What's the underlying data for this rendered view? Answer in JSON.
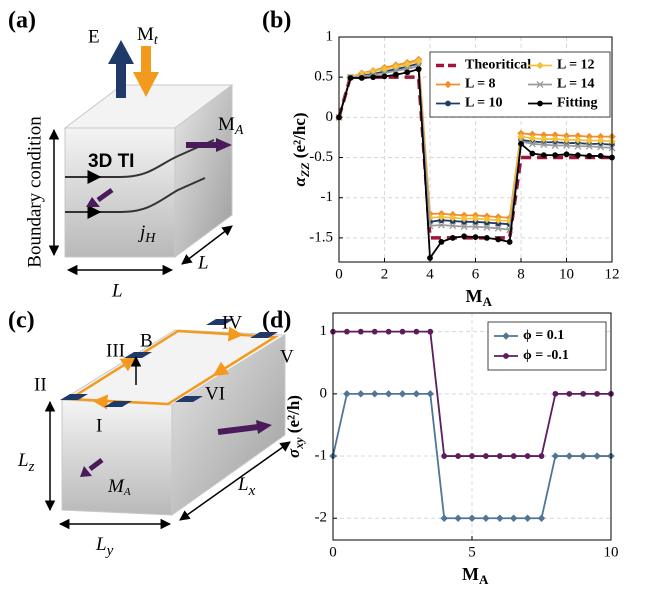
{
  "panel_labels": [
    "(a)",
    "(b)",
    "(c)",
    "(d)"
  ],
  "diagram_a": {
    "field": "E",
    "torque": {
      "symbol": "M",
      "subscript": "t"
    },
    "magnetization": {
      "symbol": "M",
      "subscript": "A"
    },
    "material": "3D TI",
    "current": {
      "symbol": "j",
      "subscript": "H"
    },
    "side_label": "Boundary condition",
    "width": "L",
    "depth": "L"
  },
  "diagram_c": {
    "field": "B",
    "leads": [
      "I",
      "II",
      "III",
      "IV",
      "V",
      "VI"
    ],
    "height": {
      "symbol": "L",
      "subscript": "z"
    },
    "width": {
      "symbol": "L",
      "subscript": "y"
    },
    "length": {
      "symbol": "L",
      "subscript": "x"
    },
    "magnetization": {
      "symbol": "M",
      "subscript": "A"
    }
  },
  "chart_data": [
    {
      "type": "line",
      "x": [
        0,
        0.5,
        1,
        1.5,
        2,
        2.5,
        3,
        3.5,
        4,
        4.5,
        5,
        5.5,
        6,
        6.5,
        7,
        7.5,
        8,
        8.5,
        9,
        9.5,
        10,
        10.5,
        11,
        11.5,
        12
      ],
      "series": [
        {
          "name": "Theoritical",
          "color": "#a0163a",
          "dash": true,
          "marker": "none",
          "values": [
            0,
            0.5,
            0.5,
            0.5,
            0.5,
            0.5,
            0.5,
            0.5,
            -1.5,
            -1.5,
            -1.5,
            -1.5,
            -1.5,
            -1.5,
            -1.5,
            -1.5,
            -0.5,
            -0.5,
            -0.5,
            -0.5,
            -0.5,
            -0.5,
            -0.5,
            -0.5,
            -0.5
          ]
        },
        {
          "name": "L = 8",
          "color": "#f28e2b",
          "marker": "diamond",
          "values": [
            0,
            0.5,
            0.55,
            0.58,
            0.62,
            0.65,
            0.68,
            0.72,
            -1.2,
            -1.2,
            -1.21,
            -1.22,
            -1.22,
            -1.23,
            -1.24,
            -1.25,
            -0.2,
            -0.21,
            -0.22,
            -0.22,
            -0.23,
            -0.23,
            -0.24,
            -0.24,
            -0.24
          ]
        },
        {
          "name": "L = 10",
          "color": "#1f3a68",
          "marker": "circle",
          "values": [
            0,
            0.5,
            0.52,
            0.54,
            0.57,
            0.6,
            0.63,
            0.67,
            -1.3,
            -1.28,
            -1.29,
            -1.3,
            -1.3,
            -1.31,
            -1.32,
            -1.33,
            -0.28,
            -0.3,
            -0.31,
            -0.31,
            -0.32,
            -0.32,
            -0.33,
            -0.33,
            -0.34
          ]
        },
        {
          "name": "L = 12",
          "color": "#f2c23a",
          "marker": "diamond",
          "values": [
            0,
            0.5,
            0.54,
            0.57,
            0.6,
            0.63,
            0.66,
            0.7,
            -1.25,
            -1.24,
            -1.25,
            -1.26,
            -1.26,
            -1.27,
            -1.28,
            -1.29,
            -0.24,
            -0.26,
            -0.27,
            -0.27,
            -0.28,
            -0.28,
            -0.29,
            -0.29,
            -0.3
          ]
        },
        {
          "name": "L = 14",
          "color": "#9a9a9a",
          "marker": "x",
          "values": [
            0,
            0.5,
            0.51,
            0.53,
            0.55,
            0.58,
            0.6,
            0.64,
            -1.35,
            -1.34,
            -1.35,
            -1.36,
            -1.36,
            -1.37,
            -1.38,
            -1.4,
            -0.3,
            -0.33,
            -0.34,
            -0.35,
            -0.35,
            -0.36,
            -0.36,
            -0.37,
            -0.38
          ]
        },
        {
          "name": "Fitting",
          "color": "#000000",
          "marker": "circle",
          "values": [
            0,
            0.49,
            0.49,
            0.5,
            0.51,
            0.53,
            0.56,
            0.6,
            -1.75,
            -1.55,
            -1.5,
            -1.48,
            -1.49,
            -1.5,
            -1.52,
            -1.55,
            -0.33,
            -0.45,
            -0.47,
            -0.47,
            -0.46,
            -0.47,
            -0.48,
            -0.48,
            -0.5
          ]
        }
      ],
      "xlim": [
        0,
        12
      ],
      "xticks": [
        0,
        2,
        4,
        6,
        8,
        10,
        12
      ],
      "ylim": [
        -1.8,
        1
      ],
      "yticks": [
        -1.5,
        -1,
        -0.5,
        0,
        0.5,
        1
      ],
      "grid": true,
      "legend": "upper right",
      "x_label": {
        "symbol": "M",
        "subscript": "A"
      },
      "y_label": {
        "symbol": "α",
        "subscript": "ZZ",
        "unit": " (e²/hc)"
      }
    },
    {
      "type": "line",
      "x": [
        0,
        0.5,
        1,
        1.5,
        2,
        2.5,
        3,
        3.5,
        4,
        4.5,
        5,
        5.5,
        6,
        6.5,
        7,
        7.5,
        8,
        8.5,
        9,
        9.5,
        10
      ],
      "series": [
        {
          "name": "ϕ = 0.1",
          "color": "#4f7696",
          "marker": "diamond",
          "values": [
            -1,
            0,
            0,
            0,
            0,
            0,
            0,
            0,
            -2,
            -2,
            -2,
            -2,
            -2,
            -2,
            -2,
            -2,
            -1,
            -1,
            -1,
            -1,
            -1
          ]
        },
        {
          "name": "ϕ = -0.1",
          "color": "#5c1c5e",
          "marker": "circle",
          "values": [
            1,
            1,
            1,
            1,
            1,
            1,
            1,
            1,
            -1,
            -1,
            -1,
            -1,
            -1,
            -1,
            -1,
            -1,
            0,
            0,
            0,
            0,
            0
          ]
        }
      ],
      "xlim": [
        0,
        10
      ],
      "xticks": [
        0,
        5,
        10
      ],
      "ylim": [
        -2.35,
        1.3
      ],
      "yticks": [
        -2,
        -1,
        0,
        1
      ],
      "grid": true,
      "legend": "upper right",
      "x_label": {
        "symbol": "M",
        "subscript": "A"
      },
      "y_label": {
        "symbol": "σ",
        "subscript": "xy",
        "unit": " (e²/h)"
      }
    }
  ]
}
